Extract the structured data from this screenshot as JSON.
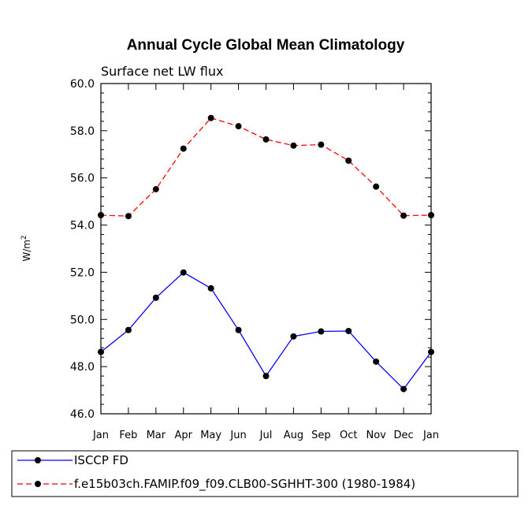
{
  "chart_data": {
    "type": "line",
    "title": "Annual Cycle Global Mean Climatology",
    "subtitle": "Surface net LW flux",
    "ylabel": "W/m",
    "ylabel_superscript": "2",
    "xlabel": "",
    "ylim": [
      46.0,
      60.0
    ],
    "yticks": [
      "46.0",
      "48.0",
      "50.0",
      "52.0",
      "54.0",
      "56.0",
      "58.0",
      "60.0"
    ],
    "categories": [
      "Jan",
      "Feb",
      "Mar",
      "Apr",
      "May",
      "Jun",
      "Jul",
      "Aug",
      "Sep",
      "Oct",
      "Nov",
      "Dec",
      "Jan"
    ],
    "series": [
      {
        "name": "ISCCP FD",
        "color": "#0000ff",
        "dashed": false,
        "values": [
          48.62,
          49.55,
          50.92,
          51.99,
          51.32,
          49.55,
          47.6,
          49.28,
          49.49,
          49.51,
          48.21,
          47.05,
          48.62
        ]
      },
      {
        "name": "f.e15b03ch.FAMIP.f09_f09.CLB00-SGHHT-300 (1980-1984)",
        "color": "#ff0000",
        "dashed": true,
        "values": [
          54.42,
          54.38,
          55.52,
          57.24,
          58.54,
          58.19,
          57.63,
          57.37,
          57.41,
          56.73,
          55.63,
          54.4,
          54.42
        ]
      }
    ]
  }
}
